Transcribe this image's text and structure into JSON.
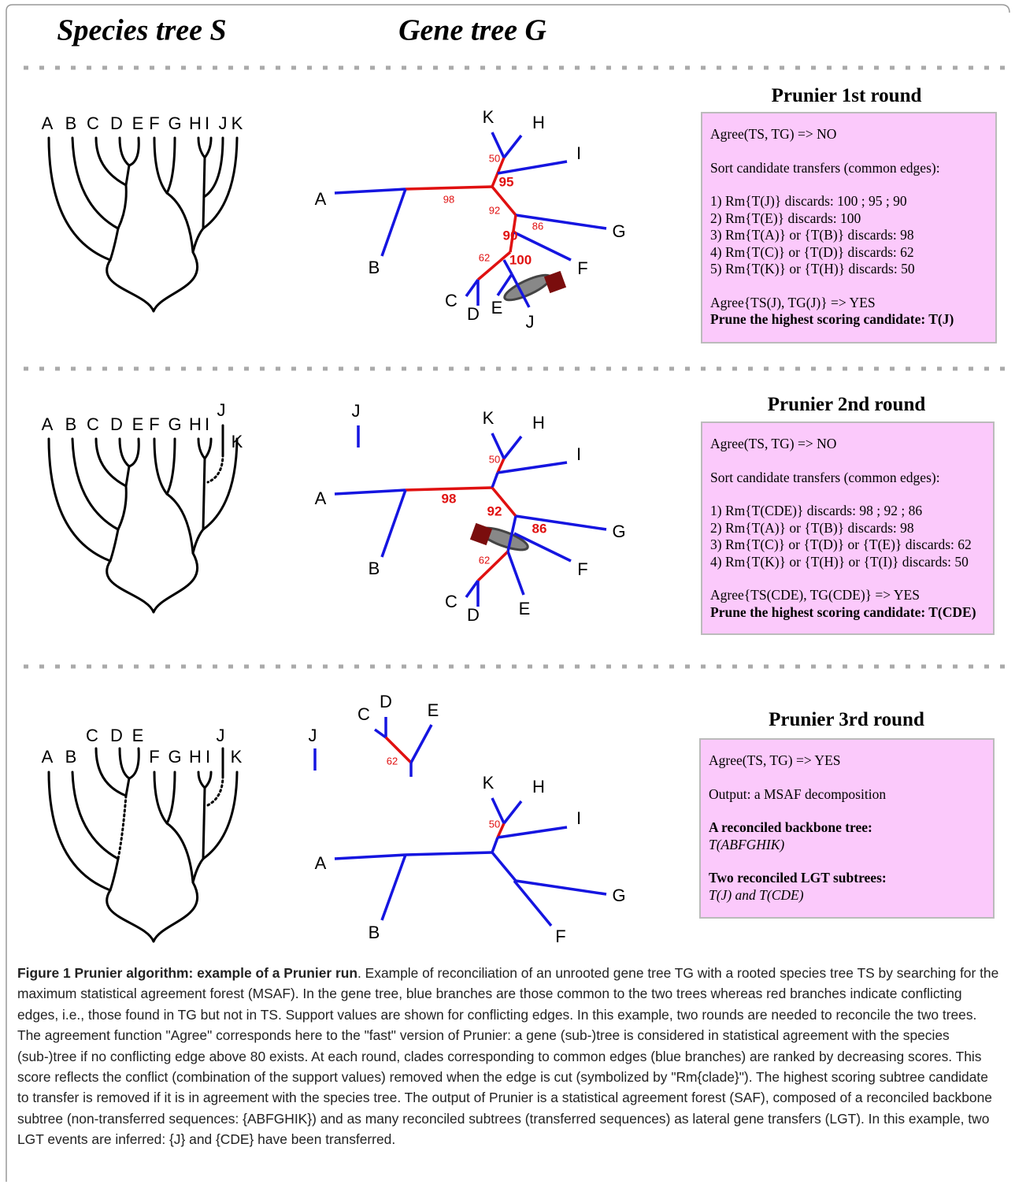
{
  "headers": {
    "species": "Species tree S",
    "gene": "Gene tree G"
  },
  "rounds": [
    {
      "title": "Prunier 1st round",
      "species_leaves": [
        "A",
        "B",
        "C",
        "D",
        "E",
        "F",
        "G",
        "H",
        "I",
        "J",
        "K"
      ],
      "gene_leaves": [
        "K",
        "H",
        "I",
        "A",
        "B",
        "G",
        "F",
        "C",
        "D",
        "E",
        "J"
      ],
      "support": [
        50,
        95,
        98,
        92,
        90,
        86,
        62,
        100
      ],
      "box": [
        "Agree(TS, TG) => NO",
        "Sort candidate transfers (common edges):",
        "1) Rm{T(J)} discards: 100 ; 95 ; 90",
        "2) Rm{T(E)} discards: 100",
        "3) Rm{T(A)} or {T(B)} discards: 98",
        "4) Rm{T(C)} or {T(D)} discards: 62",
        "5) Rm{T(K)} or {T(H)} discards: 50",
        "Agree{TS(J), TG(J)} => YES",
        "Prune the highest scoring candidate: T(J)"
      ]
    },
    {
      "title": "Prunier 2nd round",
      "species_leaves": [
        "A",
        "B",
        "C",
        "D",
        "E",
        "F",
        "G",
        "H",
        "I",
        "J",
        "K"
      ],
      "gene_leaves": [
        "J",
        "K",
        "H",
        "I",
        "A",
        "B",
        "G",
        "F",
        "C",
        "D",
        "E"
      ],
      "support": [
        50,
        98,
        92,
        86,
        62
      ],
      "box": [
        "Agree(TS, TG) => NO",
        "Sort candidate transfers (common edges):",
        "1) Rm{T(CDE)} discards: 98 ; 92 ; 86",
        "2) Rm{T(A)} or {T(B)} discards: 98",
        "3) Rm{T(C)} or {T(D)} or {T(E)} discards: 62",
        "4) Rm{T(K)} or {T(H)} or {T(I)} discards: 50",
        "Agree{TS(CDE), TG(CDE)} => YES",
        "Prune the highest scoring candidate: T(CDE)"
      ]
    },
    {
      "title": "Prunier 3rd round",
      "species_leaves": [
        "C",
        "D",
        "E",
        "J",
        "A",
        "B",
        "F",
        "G",
        "H",
        "I",
        "K"
      ],
      "gene_leaves": [
        "C",
        "D",
        "E",
        "J",
        "K",
        "H",
        "I",
        "A",
        "B",
        "G",
        "F"
      ],
      "support": [
        62,
        50
      ],
      "box": [
        "Agree(TS, TG) => YES",
        "Output: a MSAF decomposition",
        "A reconciled backbone tree:",
        "T(ABFGHIK)",
        "Two reconciled LGT subtrees:",
        "T(J) and T(CDE)"
      ]
    }
  ],
  "caption": {
    "label": "Figure 1",
    "title": "Prunier algorithm: example of a Prunier run",
    "text": ". Example of reconciliation of an unrooted gene tree TG with a rooted species tree TS by searching for the maximum statistical agreement forest (MSAF). In the gene tree, blue branches are those common to the two trees whereas red branches indicate conflicting edges, i.e., those found in TG but not in TS. Support values are shown for conflicting edges. In this example, two rounds are needed to reconcile the two trees. The agreement function \"Agree\" corresponds here to the \"fast\" version of Prunier: a gene (sub-)tree is considered in statistical agreement with the species (sub-)tree if no conflicting edge above 80 exists. At each round, clades corresponding to common edges (blue branches) are ranked by decreasing scores. This score reflects the conflict (combination of the support values) removed when the edge is cut (symbolized by \"Rm{clade}\"). The highest scoring subtree candidate to transfer is removed if it is in agreement with the species tree. The output of Prunier is a statistical agreement forest (SAF), composed of a reconciled backbone subtree (non-transferred sequences: {ABFGHIK}) and as many reconciled subtrees (transferred sequences) as lateral gene transfers (LGT). In this example, two LGT events are inferred: {J} and {CDE} have been transferred."
  }
}
